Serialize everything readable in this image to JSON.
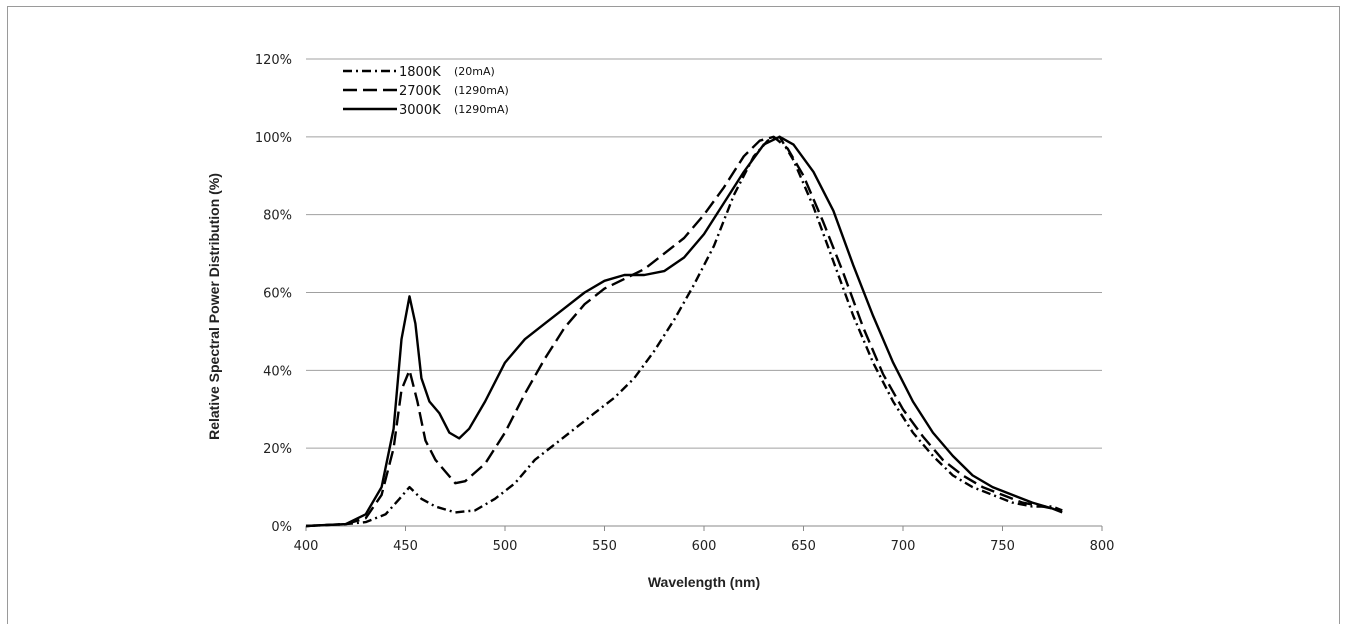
{
  "chart_data": {
    "type": "line",
    "xlabel": "Wavelength (nm)",
    "ylabel": "Relative Spectral Power Distribution (%)",
    "xlim": [
      400,
      800
    ],
    "ylim": [
      0,
      120
    ],
    "x_ticks": [
      "400",
      "450",
      "500",
      "550",
      "600",
      "650",
      "700",
      "750",
      "800"
    ],
    "y_ticks": [
      "0%",
      "20%",
      "40%",
      "60%",
      "80%",
      "100%",
      "120%"
    ],
    "grid": "horizontal",
    "legend_position": "top-left",
    "series": [
      {
        "name": "1800K",
        "note": "(20mA)",
        "dash": "dash-dot",
        "x": [
          400,
          420,
          430,
          440,
          447,
          452,
          458,
          465,
          475,
          485,
          495,
          505,
          515,
          525,
          535,
          545,
          555,
          565,
          575,
          585,
          595,
          605,
          615,
          625,
          632,
          638,
          645,
          655,
          665,
          675,
          685,
          695,
          705,
          715,
          725,
          735,
          745,
          755,
          765,
          775,
          780
        ],
        "y": [
          0,
          0.5,
          1,
          3,
          7,
          10,
          7,
          5,
          3.5,
          4,
          7,
          11,
          17,
          21,
          25,
          29,
          33,
          38,
          45,
          53,
          62,
          72,
          85,
          95,
          99,
          100,
          94,
          82,
          68,
          54,
          42,
          32,
          24,
          18,
          13,
          10,
          8,
          6,
          5,
          5,
          4
        ]
      },
      {
        "name": "2700K",
        "note": "(1290mA)",
        "dash": "long-dash",
        "x": [
          400,
          420,
          430,
          438,
          444,
          448,
          452,
          456,
          460,
          465,
          470,
          475,
          480,
          490,
          500,
          510,
          520,
          530,
          540,
          550,
          560,
          570,
          580,
          590,
          600,
          610,
          620,
          628,
          635,
          642,
          650,
          660,
          670,
          680,
          690,
          700,
          710,
          720,
          730,
          740,
          750,
          760,
          770,
          780
        ],
        "y": [
          0,
          0.5,
          2,
          8,
          20,
          35,
          40,
          32,
          22,
          17,
          14,
          11,
          11.5,
          16,
          24,
          34,
          43,
          51,
          57,
          61,
          63.5,
          66,
          70,
          74,
          80,
          87,
          95,
          99,
          100,
          97,
          90,
          78,
          65,
          51,
          39,
          30,
          23,
          17,
          13,
          10,
          8,
          6,
          5,
          4
        ]
      },
      {
        "name": "3000K",
        "note": "(1290mA)",
        "dash": "solid",
        "x": [
          400,
          420,
          430,
          438,
          444,
          448,
          452,
          455,
          458,
          462,
          467,
          472,
          477,
          482,
          490,
          500,
          510,
          520,
          530,
          540,
          550,
          560,
          570,
          580,
          590,
          600,
          610,
          620,
          630,
          638,
          645,
          655,
          665,
          675,
          685,
          695,
          705,
          715,
          725,
          735,
          745,
          755,
          765,
          775,
          780
        ],
        "y": [
          0,
          0.5,
          3,
          10,
          25,
          48,
          59,
          52,
          38,
          32,
          29,
          24,
          22.5,
          25,
          32,
          42,
          48,
          52,
          56,
          60,
          63,
          64.5,
          64.5,
          65.5,
          69,
          75,
          83,
          91,
          98,
          100,
          98,
          91,
          81,
          67,
          54,
          42,
          32,
          24,
          18,
          13,
          10,
          8,
          6,
          4.5,
          3.5
        ]
      }
    ]
  }
}
